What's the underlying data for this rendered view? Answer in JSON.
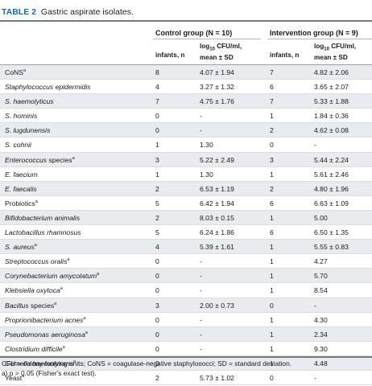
{
  "table": {
    "label": "TABLE 2",
    "caption": "Gastric aspirate isolates.",
    "groups": {
      "control": "Control group (N = 10)",
      "intervention": "Intervention group (N = 9)"
    },
    "columns": {
      "infants": "infants, n",
      "log_pre": "log",
      "log_sub": "10",
      "log_post": " CFU/ml,",
      "mean_sd": "mean ± SD"
    },
    "rows": [
      {
        "name": "CoNS",
        "sup": "a",
        "italic": false,
        "control_n": "8",
        "control_val": "4.07 ± 1.94",
        "interv_n": "7",
        "interv_val": "4.82 ± 2.06"
      },
      {
        "name": "Staphylococcus epidermidis",
        "sup": "",
        "italic": true,
        "control_n": "4",
        "control_val": "3.27 ± 1.32",
        "interv_n": "6",
        "interv_val": "3.65 ± 2.07"
      },
      {
        "name": "S. haemolyticus",
        "sup": "",
        "italic": true,
        "control_n": "7",
        "control_val": "4.75 ± 1.76",
        "interv_n": "7",
        "interv_val": "5.33 ± 1.88"
      },
      {
        "name": "S. hominis",
        "sup": "",
        "italic": true,
        "control_n": "0",
        "control_val": "-",
        "interv_n": "1",
        "interv_val": "1.84 ± 0.36"
      },
      {
        "name": "S. lugdunensis",
        "sup": "",
        "italic": true,
        "control_n": "0",
        "control_val": "-",
        "interv_n": "2",
        "interv_val": "4.62 ± 0.08"
      },
      {
        "name": "S. cohnii",
        "sup": "",
        "italic": true,
        "control_n": "1",
        "control_val": "1.30",
        "interv_n": "0",
        "interv_val": "-"
      },
      {
        "name": "Enterococcus",
        "suffix": " species",
        "sup": "a",
        "italic": true,
        "control_n": "3",
        "control_val": "5.22 ± 2.49",
        "interv_n": "3",
        "interv_val": "5.44 ± 2.24"
      },
      {
        "name": "E. faecium",
        "sup": "",
        "italic": true,
        "control_n": "1",
        "control_val": "1.30",
        "interv_n": "1",
        "interv_val": "5.61 ± 2.46"
      },
      {
        "name": "E. faecalis",
        "sup": "",
        "italic": true,
        "control_n": "2",
        "control_val": "6.53 ± 1.19",
        "interv_n": "2",
        "interv_val": "4.80 ± 1.96"
      },
      {
        "name": "Probiotics",
        "sup": "a",
        "italic": false,
        "control_n": "5",
        "control_val": "6.42 ± 1.94",
        "interv_n": "6",
        "interv_val": "6.63 ± 1.09"
      },
      {
        "name": "Bifidobacterium animalis",
        "sup": "",
        "italic": true,
        "control_n": "2",
        "control_val": "8.03 ± 0.15",
        "interv_n": "1",
        "interv_val": "5.00"
      },
      {
        "name": "Lactobacillus rhamnosus",
        "sup": "",
        "italic": true,
        "control_n": "5",
        "control_val": "6.24 ± 1.86",
        "interv_n": "6",
        "interv_val": "6.50 ± 1.35"
      },
      {
        "name": "S. aureus",
        "sup": "a",
        "italic": true,
        "control_n": "4",
        "control_val": "5.39 ± 1.61",
        "interv_n": "1",
        "interv_val": "5.55 ± 0.83"
      },
      {
        "name": "Streptococcus oralis",
        "sup": "a",
        "italic": true,
        "control_n": "0",
        "control_val": "-",
        "interv_n": "1",
        "interv_val": "4.27"
      },
      {
        "name": "Corynebacterium amycolatum",
        "sup": "a",
        "italic": true,
        "control_n": "0",
        "control_val": "-",
        "interv_n": "1",
        "interv_val": "5.70"
      },
      {
        "name": "Klebsiella oxytoca",
        "sup": "a",
        "italic": true,
        "control_n": "0",
        "control_val": "-",
        "interv_n": "1",
        "interv_val": "8.54"
      },
      {
        "name": "Bacillus",
        "suffix": " species",
        "sup": "a",
        "italic": true,
        "control_n": "3",
        "control_val": "2.00 ± 0.73",
        "interv_n": "0",
        "interv_val": "-"
      },
      {
        "name": "Proprionibacterium acnes",
        "sup": "a",
        "italic": true,
        "control_n": "0",
        "control_val": "-",
        "interv_n": "1",
        "interv_val": "4.30"
      },
      {
        "name": "Pseudomonas aeruginosa",
        "sup": "a",
        "italic": true,
        "control_n": "0",
        "control_val": "-",
        "interv_n": "1",
        "interv_val": "2.34"
      },
      {
        "name": "Clostridium difficile",
        "sup": "a",
        "italic": true,
        "control_n": "0",
        "control_val": "-",
        "interv_n": "1",
        "interv_val": "9.30"
      },
      {
        "name": "Gemella haemolysans",
        "sup": "a",
        "italic": true,
        "control_n": "0",
        "control_val": "-",
        "interv_n": "1",
        "interv_val": "4.48"
      },
      {
        "name": "Yeast",
        "sup": "a",
        "italic": false,
        "control_n": "2",
        "control_val": "5.73 ± 1.02",
        "interv_n": "0",
        "interv_val": "-"
      }
    ],
    "footnotes": [
      "CFU = colony-forming units; CoNS = coagulase-negative staphylococci; SD = standard deviation.",
      "a) p > 0.05 (Fisher's exact test)."
    ]
  }
}
